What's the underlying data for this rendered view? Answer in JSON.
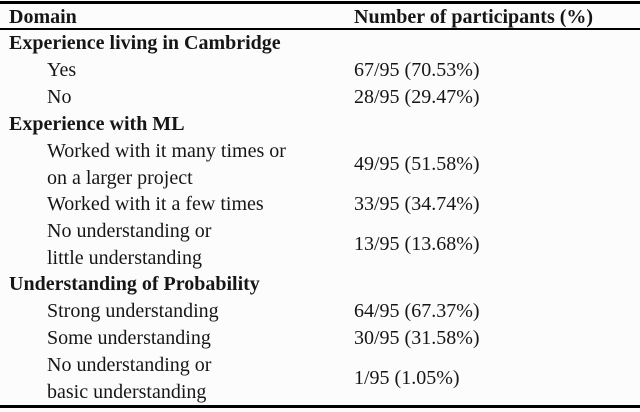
{
  "colors": {
    "text": "#161616",
    "rule": "#000000",
    "background": "#fcfcfc"
  },
  "table": {
    "header": {
      "domain": "Domain",
      "participants": "Number of participants (%)"
    },
    "rows": [
      {
        "type": "section",
        "label": "Experience living in Cambridge",
        "value": ""
      },
      {
        "type": "item",
        "label": "Yes",
        "value": "67/95 (70.53%)"
      },
      {
        "type": "item",
        "label": "No",
        "value": "28/95 (29.47%)"
      },
      {
        "type": "section",
        "label": "Experience with ML",
        "value": ""
      },
      {
        "type": "item",
        "label": "Worked with it many times or\non a larger project",
        "value": "49/95 (51.58%)"
      },
      {
        "type": "item",
        "label": "Worked with it a few times",
        "value": "33/95 (34.74%)"
      },
      {
        "type": "item",
        "label": "No understanding or\nlittle understanding",
        "value": "13/95 (13.68%)"
      },
      {
        "type": "section",
        "label": "Understanding of Probability",
        "value": ""
      },
      {
        "type": "item",
        "label": "Strong understanding",
        "value": "64/95 (67.37%)"
      },
      {
        "type": "item",
        "label": "Some understanding",
        "value": "30/95 (31.58%)"
      },
      {
        "type": "item",
        "label": "No understanding or\nbasic understanding",
        "value": "1/95 (1.05%)"
      }
    ]
  }
}
